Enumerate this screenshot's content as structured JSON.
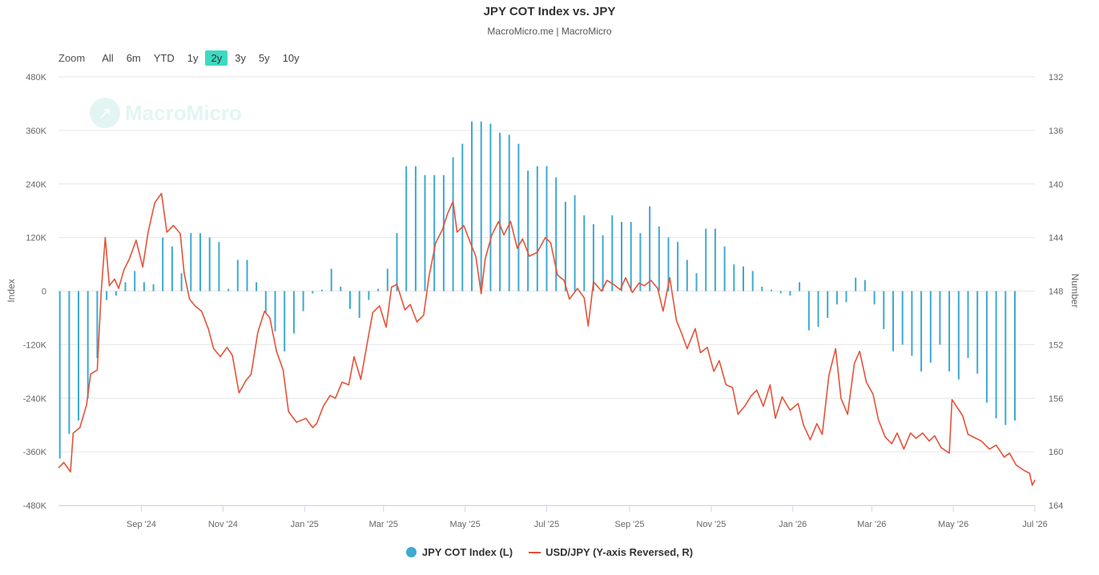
{
  "header": {
    "title": "JPY COT Index vs. JPY",
    "subtitle": "MacroMicro.me | MacroMicro"
  },
  "zoom": {
    "label": "Zoom",
    "options": [
      "All",
      "6m",
      "YTD",
      "1y",
      "2y",
      "3y",
      "5y",
      "10y"
    ],
    "selected": "2y"
  },
  "watermark": {
    "text": "MacroMicro",
    "icon": "chart-trend-icon"
  },
  "colors": {
    "bars": "#3ea9d1",
    "line": "#e4523a",
    "accent": "#3dd9c1"
  },
  "chart_data": {
    "type": "bar+line",
    "title": "JPY COT Index vs. JPY",
    "xlabel": "",
    "ylabel_left": "Index",
    "ylabel_right": "Number",
    "x_range": [
      "2024-07-01",
      "2026-07-01"
    ],
    "x_ticks": [
      {
        "date": "2024-09-01",
        "label": "Sep '24"
      },
      {
        "date": "2024-11-01",
        "label": "Nov '24"
      },
      {
        "date": "2025-01-01",
        "label": "Jan '25"
      },
      {
        "date": "2025-03-01",
        "label": "Mar '25"
      },
      {
        "date": "2025-05-01",
        "label": "May '25"
      },
      {
        "date": "2025-07-01",
        "label": "Jul '25"
      },
      {
        "date": "2025-09-01",
        "label": "Sep '25"
      },
      {
        "date": "2025-11-01",
        "label": "Nov '25"
      },
      {
        "date": "2026-01-01",
        "label": "Jan '26"
      },
      {
        "date": "2026-03-01",
        "label": "Mar '26"
      },
      {
        "date": "2026-05-01",
        "label": "May '26"
      },
      {
        "date": "2026-07-01",
        "label": "Jul '26"
      }
    ],
    "y_left": {
      "min": -480000,
      "max": 480000,
      "ticks": [
        {
          "value": 480000,
          "label": "480K"
        },
        {
          "value": 360000,
          "label": "360K"
        },
        {
          "value": 240000,
          "label": "240K"
        },
        {
          "value": 120000,
          "label": "120K"
        },
        {
          "value": 0,
          "label": "0"
        },
        {
          "value": -120000,
          "label": "-120K"
        },
        {
          "value": -240000,
          "label": "-240K"
        },
        {
          "value": -360000,
          "label": "-360K"
        },
        {
          "value": -480000,
          "label": "-480K"
        }
      ]
    },
    "y_right": {
      "min": 132,
      "max": 164,
      "reversed": true,
      "ticks": [
        {
          "value": 132,
          "label": "132"
        },
        {
          "value": 136,
          "label": "136"
        },
        {
          "value": 140,
          "label": "140"
        },
        {
          "value": 144,
          "label": "144"
        },
        {
          "value": 148,
          "label": "148"
        },
        {
          "value": 152,
          "label": "152"
        },
        {
          "value": 156,
          "label": "156"
        },
        {
          "value": 160,
          "label": "160"
        },
        {
          "value": 164,
          "label": "164"
        }
      ]
    },
    "grid": true,
    "legend_position": "bottom-center",
    "series": [
      {
        "name": "JPY COT Index (L)",
        "type": "bar",
        "axis": "left",
        "start": "2024-07-02",
        "interval_days": 7,
        "values": [
          -375000,
          -320000,
          -290000,
          -240000,
          -150000,
          -20000,
          -10000,
          20000,
          45000,
          20000,
          15000,
          120000,
          100000,
          40000,
          130000,
          130000,
          120000,
          110000,
          5000,
          70000,
          70000,
          20000,
          -50000,
          -90000,
          -135000,
          -95000,
          -45000,
          -5000,
          3000,
          50000,
          10000,
          -40000,
          -60000,
          -20000,
          5000,
          50000,
          130000,
          280000,
          280000,
          260000,
          260000,
          260000,
          300000,
          330000,
          380000,
          380000,
          375000,
          355000,
          350000,
          330000,
          270000,
          280000,
          280000,
          255000,
          200000,
          215000,
          170000,
          150000,
          125000,
          170000,
          155000,
          155000,
          130000,
          190000,
          145000,
          120000,
          110000,
          70000,
          40000,
          140000,
          140000,
          100000,
          60000,
          55000,
          45000,
          10000,
          3000,
          -5000,
          -10000,
          20000,
          -88000,
          -80000,
          -60000,
          -30000,
          -25000,
          30000,
          25000,
          -30000,
          -85000,
          -135000,
          -120000,
          -145000,
          -180000,
          -160000,
          -120000,
          -180000,
          -198000,
          -150000,
          -185000,
          -250000,
          -285000,
          -300000,
          -290000
        ]
      },
      {
        "name": "USD/JPY (Y-axis Reversed, R)",
        "type": "line",
        "axis": "right",
        "points": [
          [
            "2024-07-01",
            161.2
          ],
          [
            "2024-07-05",
            160.8
          ],
          [
            "2024-07-10",
            161.5
          ],
          [
            "2024-07-12",
            158.6
          ],
          [
            "2024-07-17",
            158.2
          ],
          [
            "2024-07-22",
            156.5
          ],
          [
            "2024-07-25",
            154.2
          ],
          [
            "2024-07-30",
            153.9
          ],
          [
            "2024-08-02",
            148.0
          ],
          [
            "2024-08-05",
            144.0
          ],
          [
            "2024-08-08",
            147.6
          ],
          [
            "2024-08-12",
            147.1
          ],
          [
            "2024-08-15",
            147.8
          ],
          [
            "2024-08-19",
            146.4
          ],
          [
            "2024-08-23",
            145.6
          ],
          [
            "2024-08-28",
            144.2
          ],
          [
            "2024-09-02",
            146.2
          ],
          [
            "2024-09-06",
            143.6
          ],
          [
            "2024-09-11",
            141.4
          ],
          [
            "2024-09-16",
            140.7
          ],
          [
            "2024-09-20",
            143.6
          ],
          [
            "2024-09-25",
            143.1
          ],
          [
            "2024-09-30",
            143.7
          ],
          [
            "2024-10-03",
            146.7
          ],
          [
            "2024-10-07",
            148.6
          ],
          [
            "2024-10-11",
            149.1
          ],
          [
            "2024-10-16",
            149.5
          ],
          [
            "2024-10-21",
            150.8
          ],
          [
            "2024-10-25",
            152.3
          ],
          [
            "2024-10-30",
            152.9
          ],
          [
            "2024-11-04",
            152.2
          ],
          [
            "2024-11-08",
            152.8
          ],
          [
            "2024-11-13",
            155.6
          ],
          [
            "2024-11-18",
            154.7
          ],
          [
            "2024-11-22",
            154.2
          ],
          [
            "2024-11-27",
            151.1
          ],
          [
            "2024-12-02",
            149.5
          ],
          [
            "2024-12-06",
            150.0
          ],
          [
            "2024-12-11",
            152.5
          ],
          [
            "2024-12-16",
            153.9
          ],
          [
            "2024-12-20",
            157.0
          ],
          [
            "2024-12-26",
            157.8
          ],
          [
            "2025-01-02",
            157.5
          ],
          [
            "2025-01-07",
            158.2
          ],
          [
            "2025-01-10",
            157.9
          ],
          [
            "2025-01-15",
            156.6
          ],
          [
            "2025-01-20",
            155.8
          ],
          [
            "2025-01-24",
            156.0
          ],
          [
            "2025-01-29",
            154.8
          ],
          [
            "2025-02-03",
            155.0
          ],
          [
            "2025-02-07",
            152.9
          ],
          [
            "2025-02-12",
            154.6
          ],
          [
            "2025-02-17",
            151.8
          ],
          [
            "2025-02-21",
            149.6
          ],
          [
            "2025-02-26",
            149.1
          ],
          [
            "2025-03-03",
            150.7
          ],
          [
            "2025-03-07",
            147.7
          ],
          [
            "2025-03-11",
            147.5
          ],
          [
            "2025-03-17",
            149.4
          ],
          [
            "2025-03-21",
            149.0
          ],
          [
            "2025-03-26",
            150.3
          ],
          [
            "2025-03-31",
            149.8
          ],
          [
            "2025-04-04",
            146.9
          ],
          [
            "2025-04-09",
            144.4
          ],
          [
            "2025-04-14",
            143.4
          ],
          [
            "2025-04-18",
            142.2
          ],
          [
            "2025-04-22",
            141.3
          ],
          [
            "2025-04-25",
            143.6
          ],
          [
            "2025-04-30",
            143.1
          ],
          [
            "2025-05-05",
            144.4
          ],
          [
            "2025-05-09",
            145.4
          ],
          [
            "2025-05-13",
            148.2
          ],
          [
            "2025-05-16",
            145.6
          ],
          [
            "2025-05-21",
            143.8
          ],
          [
            "2025-05-26",
            142.8
          ],
          [
            "2025-05-30",
            143.8
          ],
          [
            "2025-06-04",
            142.8
          ],
          [
            "2025-06-09",
            144.8
          ],
          [
            "2025-06-13",
            144.1
          ],
          [
            "2025-06-18",
            145.4
          ],
          [
            "2025-06-24",
            145.1
          ],
          [
            "2025-06-30",
            144.0
          ],
          [
            "2025-07-04",
            144.4
          ],
          [
            "2025-07-09",
            146.8
          ],
          [
            "2025-07-14",
            147.2
          ],
          [
            "2025-07-18",
            148.6
          ],
          [
            "2025-07-24",
            147.8
          ],
          [
            "2025-07-29",
            148.5
          ],
          [
            "2025-08-01",
            150.6
          ],
          [
            "2025-08-05",
            147.3
          ],
          [
            "2025-08-11",
            148.0
          ],
          [
            "2025-08-15",
            147.2
          ],
          [
            "2025-08-20",
            147.5
          ],
          [
            "2025-08-25",
            147.9
          ],
          [
            "2025-08-29",
            147.0
          ],
          [
            "2025-09-03",
            148.1
          ],
          [
            "2025-09-08",
            147.4
          ],
          [
            "2025-09-12",
            147.6
          ],
          [
            "2025-09-17",
            147.2
          ],
          [
            "2025-09-22",
            147.8
          ],
          [
            "2025-09-26",
            149.5
          ],
          [
            "2025-10-01",
            147.0
          ],
          [
            "2025-10-06",
            150.2
          ],
          [
            "2025-10-10",
            151.2
          ],
          [
            "2025-10-14",
            152.3
          ],
          [
            "2025-10-20",
            150.8
          ],
          [
            "2025-10-24",
            152.6
          ],
          [
            "2025-10-29",
            152.2
          ],
          [
            "2025-11-03",
            154.0
          ],
          [
            "2025-11-07",
            153.2
          ],
          [
            "2025-11-12",
            155.0
          ],
          [
            "2025-11-17",
            155.2
          ],
          [
            "2025-11-21",
            157.2
          ],
          [
            "2025-11-26",
            156.6
          ],
          [
            "2025-12-01",
            155.8
          ],
          [
            "2025-12-05",
            155.4
          ],
          [
            "2025-12-10",
            156.6
          ],
          [
            "2025-12-15",
            155.0
          ],
          [
            "2025-12-19",
            157.5
          ],
          [
            "2025-12-24",
            155.9
          ],
          [
            "2025-12-30",
            156.9
          ],
          [
            "2026-01-05",
            156.4
          ],
          [
            "2026-01-09",
            158.0
          ],
          [
            "2026-01-14",
            159.1
          ],
          [
            "2026-01-19",
            157.9
          ],
          [
            "2026-01-23",
            158.7
          ],
          [
            "2026-01-28",
            154.3
          ],
          [
            "2026-02-02",
            152.3
          ],
          [
            "2026-02-06",
            156.0
          ],
          [
            "2026-02-11",
            157.2
          ],
          [
            "2026-02-16",
            153.4
          ],
          [
            "2026-02-20",
            152.5
          ],
          [
            "2026-02-25",
            154.8
          ],
          [
            "2026-03-02",
            155.7
          ],
          [
            "2026-03-06",
            157.6
          ],
          [
            "2026-03-11",
            158.9
          ],
          [
            "2026-03-16",
            159.4
          ],
          [
            "2026-03-20",
            158.6
          ],
          [
            "2026-03-25",
            159.8
          ],
          [
            "2026-03-30",
            158.6
          ],
          [
            "2026-04-03",
            159.0
          ],
          [
            "2026-04-08",
            158.6
          ],
          [
            "2026-04-13",
            159.2
          ],
          [
            "2026-04-17",
            158.8
          ],
          [
            "2026-04-22",
            159.7
          ],
          [
            "2026-04-28",
            160.1
          ],
          [
            "2026-04-30",
            156.1
          ],
          [
            "2026-05-04",
            156.7
          ],
          [
            "2026-05-08",
            157.3
          ],
          [
            "2026-05-12",
            158.7
          ],
          [
            "2026-05-18",
            159.0
          ],
          [
            "2026-05-22",
            159.2
          ],
          [
            "2026-05-28",
            159.8
          ],
          [
            "2026-06-02",
            159.5
          ],
          [
            "2026-06-08",
            160.4
          ],
          [
            "2026-06-12",
            160.1
          ],
          [
            "2026-06-17",
            161.0
          ],
          [
            "2026-06-23",
            161.4
          ],
          [
            "2026-06-27",
            161.6
          ],
          [
            "2026-06-29",
            162.5
          ],
          [
            "2026-07-01",
            162.1
          ]
        ]
      }
    ]
  }
}
